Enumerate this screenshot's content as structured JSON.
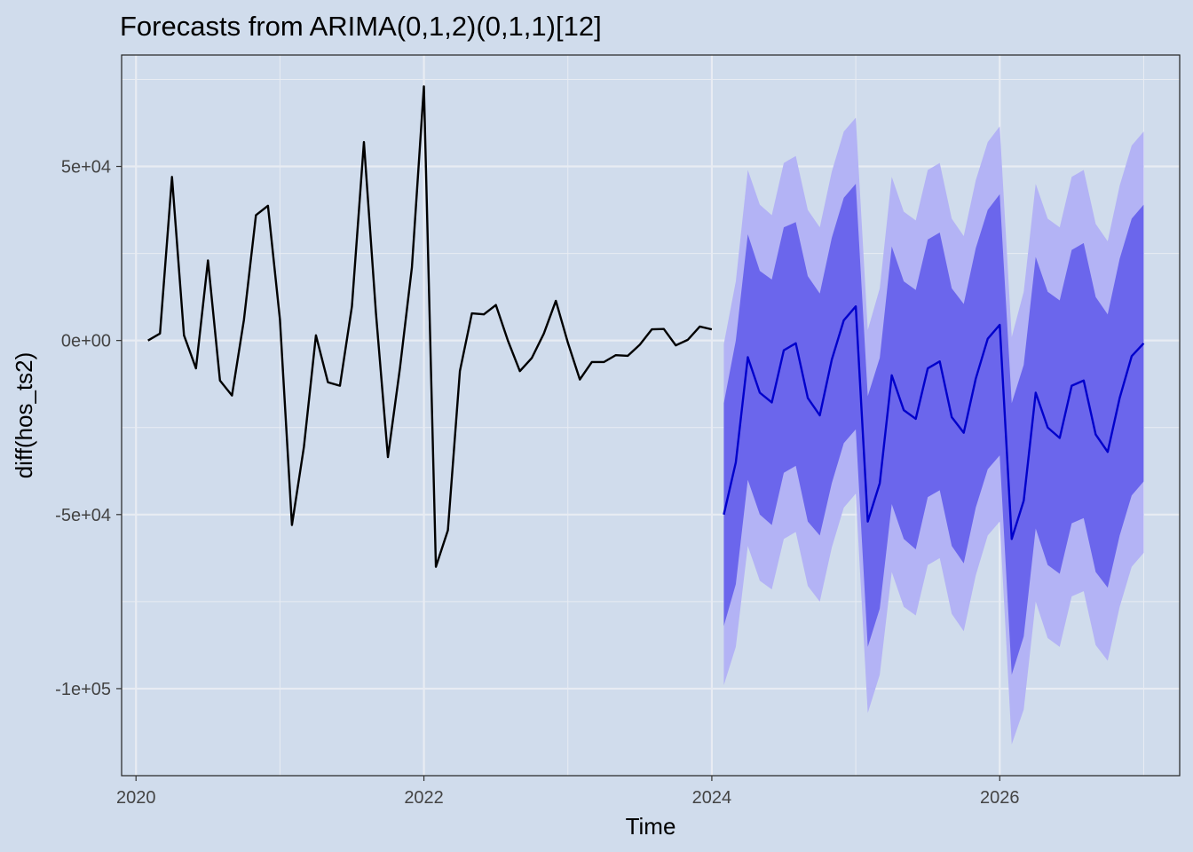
{
  "chart_data": {
    "type": "line",
    "title": "Forecasts from ARIMA(0,1,2)(0,1,1)[12]",
    "xlabel": "Time",
    "ylabel": "diff(hos_ts2)",
    "xlim": [
      2019.9,
      2027.25
    ],
    "ylim": [
      -125000,
      82000
    ],
    "x_ticks": [
      2020,
      2022,
      2024,
      2026
    ],
    "x_tick_labels": [
      "2020",
      "2022",
      "2024",
      "2026"
    ],
    "y_ticks": [
      50000,
      0,
      -50000,
      -100000
    ],
    "y_tick_labels": [
      "5e+04",
      "0e+00",
      "-5e+04",
      "-1e+05"
    ],
    "grid": true,
    "colors": {
      "background": "#d0dcec",
      "grid": "#e8ecf3",
      "history": "#000000",
      "forecast": "#0000cc",
      "band80": "#6b66ec",
      "band95": "#b3b3f5"
    },
    "history": {
      "start": 2020.0833,
      "step": 0.08333,
      "values": [
        0,
        2000,
        47000,
        1500,
        -8000,
        23000,
        -11500,
        -15800,
        6000,
        36000,
        38700,
        6000,
        -53000,
        -30500,
        1500,
        -12000,
        -13000,
        9800,
        57000,
        8000,
        -33500,
        -8000,
        21000,
        73000,
        -65000,
        -54500,
        -8800,
        7800,
        7500,
        10200,
        0,
        -8800,
        -5000,
        2000,
        11400,
        -600,
        -11200,
        -6200,
        -6200,
        -4200,
        -4400,
        -1200,
        3200,
        3300,
        -1400,
        200,
        4000,
        3200
      ]
    },
    "forecast": {
      "start": 2024.0833,
      "step": 0.08333,
      "values": [
        -50000,
        -35000,
        -4800,
        -15000,
        -17800,
        -2800,
        -800,
        -16500,
        -21500,
        -5500,
        5800,
        9800,
        -52000,
        -41000,
        -10000,
        -20000,
        -22500,
        -8000,
        -6000,
        -22000,
        -26500,
        -11000,
        500,
        4500,
        -57000,
        -46000,
        -15000,
        -25000,
        -28000,
        -13000,
        -11500,
        -27000,
        -32000,
        -16500,
        -4500,
        -800
      ],
      "lo80": [
        -82000,
        -70000,
        -40000,
        -50000,
        -53000,
        -38000,
        -36000,
        -52000,
        -56000,
        -41000,
        -29500,
        -25500,
        -88000,
        -77000,
        -47000,
        -57000,
        -60000,
        -45000,
        -43000,
        -59000,
        -64000,
        -48000,
        -37000,
        -33000,
        -96000,
        -85000,
        -54000,
        -64500,
        -67000,
        -52500,
        -51000,
        -66500,
        -71000,
        -56000,
        -44500,
        -40500
      ],
      "hi80": [
        -18000,
        0,
        30500,
        20000,
        17500,
        32500,
        34000,
        18500,
        13500,
        29500,
        41000,
        45000,
        -16000,
        -5000,
        27000,
        17000,
        14500,
        29000,
        31000,
        15000,
        10500,
        26500,
        37500,
        42000,
        -18000,
        -7000,
        24000,
        14000,
        11500,
        26000,
        28000,
        12500,
        7500,
        23500,
        35000,
        39000
      ],
      "lo95": [
        -99000,
        -88000,
        -59000,
        -69000,
        -71500,
        -57000,
        -55000,
        -70500,
        -75000,
        -59500,
        -48000,
        -44000,
        -107000,
        -96000,
        -66500,
        -76500,
        -79000,
        -64500,
        -62500,
        -78500,
        -83500,
        -67500,
        -56000,
        -52000,
        -116000,
        -106000,
        -75000,
        -85500,
        -88000,
        -73500,
        -72000,
        -87500,
        -92000,
        -76500,
        -65000,
        -61000
      ],
      "hi95": [
        -1000,
        17000,
        49000,
        39000,
        36000,
        51000,
        53000,
        37500,
        32500,
        48500,
        60000,
        64000,
        3000,
        15000,
        47000,
        37000,
        34500,
        49000,
        51000,
        35000,
        30000,
        46000,
        57000,
        61500,
        1000,
        14000,
        45000,
        35000,
        32500,
        47000,
        49000,
        33500,
        28500,
        44500,
        56000,
        60000
      ]
    }
  }
}
